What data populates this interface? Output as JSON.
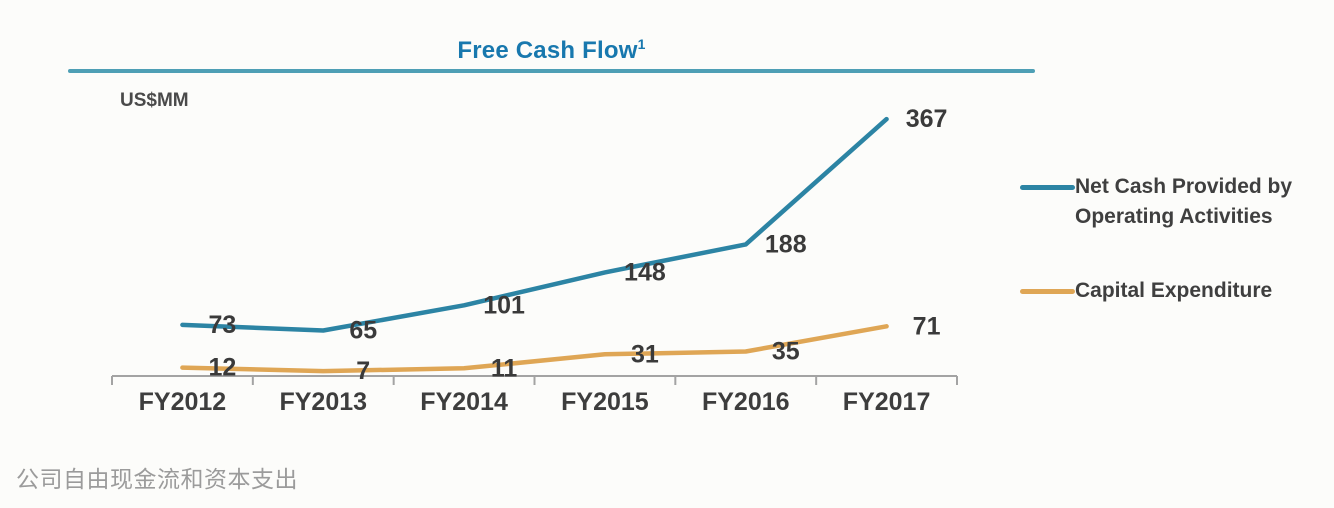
{
  "page": {
    "background": "#fcfcfa"
  },
  "header": {
    "title": "Free Cash Flow",
    "title_superscript": "1",
    "title_color": "#1878ae",
    "rule_color": "#4e9fb5",
    "unit_label": "US$MM"
  },
  "legend": [
    {
      "label": "Net Cash Provided by Operating Activities",
      "lines": [
        "Net Cash Provided by",
        "Operating Activities"
      ],
      "color": "#2c84a4"
    },
    {
      "label": "Capital Expenditure",
      "lines": [
        "Capital Expenditure",
        ""
      ],
      "color": "#dfa655"
    }
  ],
  "caption": "公司自由现金流和资本支出",
  "chart_data": {
    "type": "line",
    "title": "Free Cash Flow",
    "unit": "US$MM",
    "categories": [
      "FY2012",
      "FY2013",
      "FY2014",
      "FY2015",
      "FY2016",
      "FY2017"
    ],
    "series": [
      {
        "name": "Net Cash Provided by Operating Activities",
        "color": "#2c84a4",
        "values": [
          73,
          65,
          101,
          148,
          188,
          367
        ]
      },
      {
        "name": "Capital Expenditure",
        "color": "#dfa655",
        "values": [
          12,
          7,
          11,
          31,
          35,
          71
        ]
      }
    ],
    "ylim": [
      0,
      410
    ],
    "grid": false,
    "data_labels": true,
    "legend_position": "right",
    "axis_color": "#a3a3a3",
    "label_color": "#3a3a3a"
  }
}
